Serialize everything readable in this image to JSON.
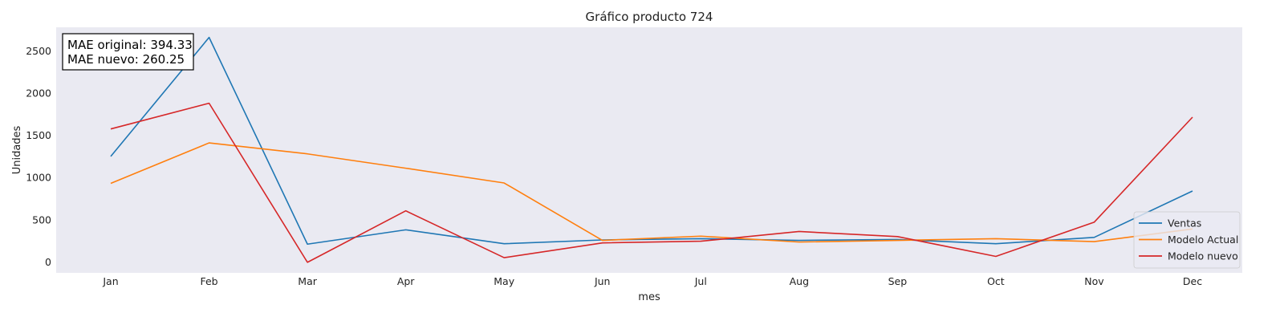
{
  "chart_data": {
    "type": "line",
    "title": "Gráfico producto 724",
    "xlabel": "mes",
    "ylabel": "Unidades",
    "categories": [
      "Jan",
      "Feb",
      "Mar",
      "Apr",
      "May",
      "Jun",
      "Jul",
      "Aug",
      "Sep",
      "Oct",
      "Nov",
      "Dec"
    ],
    "yticks": [
      0,
      500,
      1000,
      1500,
      2000,
      2500
    ],
    "ylim": [
      -130,
      2780
    ],
    "grid": false,
    "legend_position": "bottom-right",
    "series": [
      {
        "name": "Ventas",
        "color": "#1f77b4",
        "values": [
          1250,
          2660,
          210,
          380,
          215,
          260,
          275,
          255,
          265,
          215,
          290,
          840
        ]
      },
      {
        "name": "Modelo Actual",
        "color": "#ff7f0e",
        "values": [
          930,
          1410,
          1280,
          1110,
          935,
          255,
          305,
          235,
          255,
          275,
          240,
          390
        ]
      },
      {
        "name": "Modelo nuevo",
        "color": "#d62728",
        "values": [
          1575,
          1880,
          -5,
          605,
          50,
          225,
          245,
          360,
          300,
          65,
          470,
          1715
        ]
      }
    ],
    "annotation": {
      "line1": "MAE original: 394.33",
      "line2": "MAE nuevo: 260.25"
    }
  }
}
